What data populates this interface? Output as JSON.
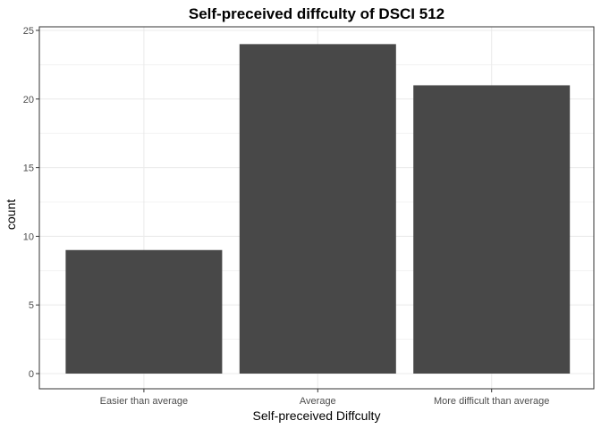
{
  "chart_data": {
    "type": "bar",
    "title": "Self-preceived diffculty of DSCI 512",
    "xlabel": "Self-preceived Diffculty",
    "ylabel": "count",
    "categories": [
      "Easier than average",
      "Average",
      "More difficult than average"
    ],
    "values": [
      9,
      24,
      21
    ],
    "ylim": [
      0,
      25
    ],
    "yticks": [
      "0",
      "5",
      "10",
      "15",
      "20",
      "25"
    ],
    "grid": true,
    "legend": "none",
    "colors": {
      "bar": "#484848",
      "grid": "#ebebeb",
      "panel_border": "#333333",
      "background": "#ffffff"
    }
  }
}
